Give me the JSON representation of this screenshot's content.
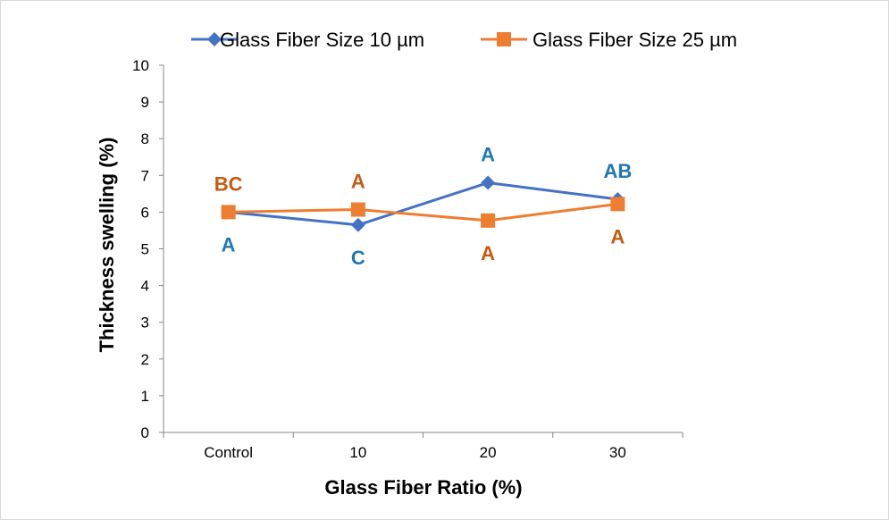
{
  "chart_data": {
    "type": "line",
    "title": "",
    "xlabel": "Glass Fiber Ratio (%)",
    "ylabel": "Thickness swelling (%)",
    "categories": [
      "Control",
      "10",
      "20",
      "30"
    ],
    "ylim": [
      0,
      10
    ],
    "yticks": [
      "0",
      "1",
      "2",
      "3",
      "4",
      "5",
      "6",
      "7",
      "8",
      "9",
      "10"
    ],
    "grid": false,
    "legend_position": "top",
    "series": [
      {
        "name": "Glass Fiber Size  10 µm",
        "values": [
          6.0,
          5.65,
          6.8,
          6.35
        ],
        "color": "#4472c4",
        "marker": "diamond",
        "letters": [
          "A",
          "C",
          "A",
          "AB"
        ],
        "letter_placement": [
          "below",
          "below",
          "above",
          "above"
        ]
      },
      {
        "name": "Glass Fiber Size 25 µm",
        "values": [
          6.0,
          6.07,
          5.77,
          6.22
        ],
        "color": "#ed7d31",
        "marker": "square",
        "letters": [
          "BC",
          "A",
          "A",
          "A"
        ],
        "letter_placement": [
          "above",
          "above",
          "below",
          "below"
        ]
      }
    ],
    "annotation_colors": {
      "series_1": "#1f77b4",
      "series_2": "#c55a11"
    }
  }
}
